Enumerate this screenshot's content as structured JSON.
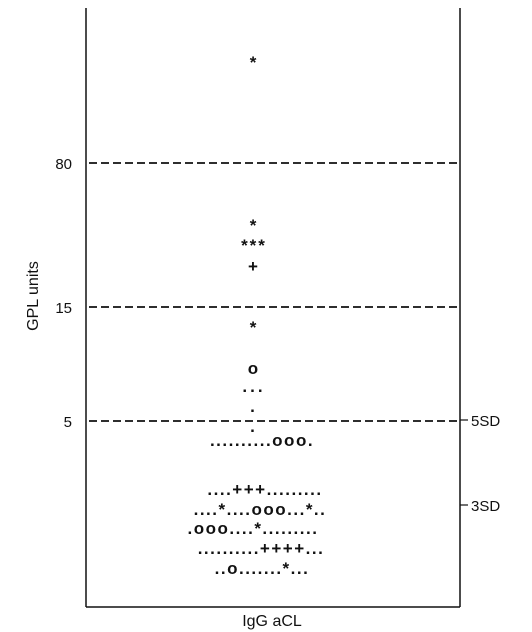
{
  "chart_data": {
    "type": "scatter",
    "title": "",
    "xlabel": "IgG aCL",
    "ylabel": "GPL units",
    "y_tick_labels": [
      "80",
      "15",
      "5"
    ],
    "reference_lines": [
      {
        "value": 80,
        "style": "dashed"
      },
      {
        "value": 15,
        "style": "dashed"
      },
      {
        "value": 5,
        "style": "dashed",
        "label": "5SD"
      }
    ],
    "right_annotations": [
      "5SD",
      "3SD"
    ],
    "rows": [
      "*",
      "*",
      "***",
      "+",
      "*",
      "o",
      "...",
      ".",
      ".",
      "..........ooo.",
      "....+++.........",
      "....*....ooo...*..",
      ".ooo....*.........",
      "..........++++...",
      "..o.......*..."
    ],
    "colors": {
      "ink": "#111111",
      "background": "#ffffff"
    }
  }
}
